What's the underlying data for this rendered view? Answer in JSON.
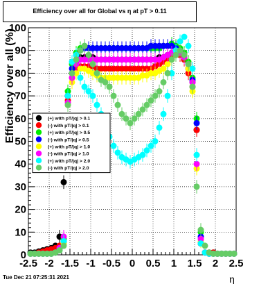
{
  "header": {
    "title": "Efficiency over all for Global vs   η at pT > 0.11"
  },
  "footer": {
    "timestamp": "Tue Dec 21 07:25:31 2021"
  },
  "chart_data": {
    "type": "scatter",
    "title": "Efficiency over all for Global vs   η at pT > 0.11",
    "xlabel": "η",
    "ylabel": "Efficiency over all (%)",
    "xlim": [
      -2.5,
      2.5
    ],
    "ylim": [
      0,
      100
    ],
    "x_ticks": [
      "-2.5",
      "-2",
      "-1.5",
      "-1",
      "-0.5",
      "0",
      "0.5",
      "1",
      "1.5",
      "2",
      "2.5"
    ],
    "y_ticks": [
      "0",
      "10",
      "20",
      "30",
      "40",
      "50",
      "60",
      "70",
      "80",
      "90",
      "100"
    ],
    "grid": true,
    "legend_position": "left-middle",
    "series": [
      {
        "name": "(+) with pT/|q| > 0.1",
        "color": "#000000",
        "x": [
          -2.45,
          -2.35,
          -2.25,
          -2.15,
          -2.05,
          -1.95,
          -1.85,
          -1.75,
          -1.65,
          -1.55,
          -1.45,
          -1.35,
          -1.25,
          -1.15,
          -1.05,
          -0.95,
          -0.85,
          -0.75,
          -0.65,
          -0.55,
          -0.45,
          -0.35,
          -0.25,
          -0.15,
          -0.05,
          0.05,
          0.15,
          0.25,
          0.35,
          0.45,
          0.55,
          0.65,
          0.75,
          0.85,
          0.95,
          1.05,
          1.15,
          1.25,
          1.35,
          1.45,
          1.55,
          1.65,
          1.75,
          1.85,
          1.95,
          2.05,
          2.15,
          2.25,
          2.35,
          2.45
        ],
        "y": [
          1,
          1,
          1.5,
          2,
          2.5,
          3,
          4,
          8,
          32,
          70,
          80,
          85,
          87,
          87,
          87,
          87,
          86,
          86,
          86,
          86,
          86,
          86,
          86,
          86,
          86,
          86,
          86,
          86,
          86,
          86,
          86,
          87,
          87,
          88,
          89,
          89,
          88,
          86,
          82,
          76,
          55,
          5,
          1,
          1,
          1,
          0.5,
          0.5,
          0.5,
          0.5,
          0.5
        ]
      },
      {
        "name": "(-) with pT/|q| > 0.1",
        "color": "#ff0000",
        "x": [
          -2.45,
          -2.35,
          -2.25,
          -2.15,
          -2.05,
          -1.95,
          -1.85,
          -1.75,
          -1.65,
          -1.55,
          -1.45,
          -1.35,
          -1.25,
          -1.15,
          -1.05,
          -0.95,
          -0.85,
          -0.75,
          -0.65,
          -0.55,
          -0.45,
          -0.35,
          -0.25,
          -0.15,
          -0.05,
          0.05,
          0.15,
          0.25,
          0.35,
          0.45,
          0.55,
          0.65,
          0.75,
          0.85,
          0.95,
          1.05,
          1.15,
          1.25,
          1.35,
          1.45,
          1.55,
          1.65,
          1.75,
          1.85,
          1.95,
          2.05,
          2.15,
          2.25,
          2.35,
          2.45
        ],
        "y": [
          0.5,
          0.5,
          1,
          1.5,
          2,
          2.5,
          3,
          4,
          5,
          68,
          78,
          82,
          83,
          83,
          83,
          83,
          82,
          82,
          82,
          82,
          82,
          82,
          82,
          82,
          82,
          82,
          82,
          82,
          82,
          82,
          83,
          84,
          85,
          86,
          87,
          88,
          88,
          86,
          80,
          74,
          55,
          5,
          1,
          1,
          1,
          0.5,
          0.5,
          0.5,
          0.5,
          0.5
        ]
      },
      {
        "name": "(+) with pT/|q| > 0.5",
        "color": "#00ee00",
        "x": [
          -2.45,
          -2.35,
          -2.25,
          -2.15,
          -2.05,
          -1.95,
          -1.85,
          -1.75,
          -1.65,
          -1.55,
          -1.45,
          -1.35,
          -1.25,
          -1.15,
          -1.05,
          -0.95,
          -0.85,
          -0.75,
          -0.65,
          -0.55,
          -0.45,
          -0.35,
          -0.25,
          -0.15,
          -0.05,
          0.05,
          0.15,
          0.25,
          0.35,
          0.45,
          0.55,
          0.65,
          0.75,
          0.85,
          0.95,
          1.05,
          1.15,
          1.25,
          1.35,
          1.45,
          1.55,
          1.65,
          1.75,
          1.85,
          1.95,
          2.05,
          2.15,
          2.25,
          2.35,
          2.45
        ],
        "y": [
          0.5,
          0.5,
          0.5,
          0.5,
          0.5,
          0.5,
          1,
          3,
          7,
          72,
          84,
          89,
          91,
          92,
          91,
          91,
          91,
          91,
          91,
          91,
          91,
          91,
          91,
          91,
          91,
          91,
          91,
          91,
          91,
          91,
          91,
          91,
          92,
          92,
          93,
          92,
          91,
          89,
          85,
          78,
          60,
          10,
          1,
          0.5,
          0.5,
          0.5,
          0.5,
          0.5,
          0.5,
          0.5
        ]
      },
      {
        "name": "(-) with pT/|q| > 0.5",
        "color": "#0000ff",
        "x": [
          -2.45,
          -2.35,
          -2.25,
          -2.15,
          -2.05,
          -1.95,
          -1.85,
          -1.75,
          -1.65,
          -1.55,
          -1.45,
          -1.35,
          -1.25,
          -1.15,
          -1.05,
          -0.95,
          -0.85,
          -0.75,
          -0.65,
          -0.55,
          -0.45,
          -0.35,
          -0.25,
          -0.15,
          -0.05,
          0.05,
          0.15,
          0.25,
          0.35,
          0.45,
          0.55,
          0.65,
          0.75,
          0.85,
          0.95,
          1.05,
          1.15,
          1.25,
          1.35,
          1.45,
          1.55,
          1.65,
          1.75,
          1.85,
          1.95,
          2.05,
          2.15,
          2.25,
          2.35,
          2.45
        ],
        "y": [
          0.5,
          0.5,
          0.5,
          0.5,
          0.5,
          0.5,
          1,
          3,
          6,
          70,
          82,
          88,
          90,
          91,
          91,
          91,
          91,
          91,
          91,
          91,
          91,
          91,
          91,
          91,
          91,
          91,
          91,
          91,
          91,
          92,
          92,
          92,
          92,
          92,
          92,
          91,
          90,
          88,
          84,
          77,
          58,
          8,
          1,
          0.5,
          0.5,
          0.5,
          0.5,
          0.5,
          0.5,
          0.5
        ]
      },
      {
        "name": "(+) with pT/|q| > 1.0",
        "color": "#ffff00",
        "x": [
          -2.45,
          -2.35,
          -2.25,
          -2.15,
          -2.05,
          -1.95,
          -1.85,
          -1.75,
          -1.65,
          -1.55,
          -1.45,
          -1.35,
          -1.25,
          -1.15,
          -1.05,
          -0.95,
          -0.85,
          -0.75,
          -0.65,
          -0.55,
          -0.45,
          -0.35,
          -0.25,
          -0.15,
          -0.05,
          0.05,
          0.15,
          0.25,
          0.35,
          0.45,
          0.55,
          0.65,
          0.75,
          0.85,
          0.95,
          1.05,
          1.15,
          1.25,
          1.35,
          1.45,
          1.55,
          1.65,
          1.75,
          1.85,
          1.95,
          2.05,
          2.15,
          2.25,
          2.35,
          2.45
        ],
        "y": [
          0.5,
          0.5,
          0.5,
          0.5,
          0.5,
          0.5,
          1,
          2,
          5,
          66,
          76,
          80,
          82,
          82,
          81,
          80,
          79,
          78,
          78,
          78,
          78,
          78,
          78,
          78,
          78,
          78,
          78,
          79,
          79,
          80,
          80,
          81,
          82,
          84,
          86,
          88,
          89,
          88,
          82,
          72,
          38,
          6,
          1,
          0.5,
          0.5,
          0.5,
          0.5,
          0.5,
          0.5,
          0.5
        ]
      },
      {
        "name": "(-) with pT/|q| > 1.0",
        "color": "#ff00ff",
        "x": [
          -2.45,
          -2.35,
          -2.25,
          -2.15,
          -2.05,
          -1.95,
          -1.85,
          -1.75,
          -1.65,
          -1.55,
          -1.45,
          -1.35,
          -1.25,
          -1.15,
          -1.05,
          -0.95,
          -0.85,
          -0.75,
          -0.65,
          -0.55,
          -0.45,
          -0.35,
          -0.25,
          -0.15,
          -0.05,
          0.05,
          0.15,
          0.25,
          0.35,
          0.45,
          0.55,
          0.65,
          0.75,
          0.85,
          0.95,
          1.05,
          1.15,
          1.25,
          1.35,
          1.45,
          1.55,
          1.65,
          1.75,
          1.85,
          1.95,
          2.05,
          2.15,
          2.25,
          2.35,
          2.45
        ],
        "y": [
          0.5,
          0.5,
          0.5,
          0.5,
          0.5,
          0.5,
          1,
          3,
          8,
          67,
          78,
          84,
          86,
          86,
          86,
          86,
          86,
          86,
          86,
          86,
          86,
          86,
          86,
          86,
          86,
          86,
          86,
          86,
          86,
          86,
          86,
          86,
          87,
          88,
          89,
          90,
          89,
          87,
          84,
          76,
          40,
          7,
          1,
          0.5,
          0.5,
          0.5,
          0.5,
          0.5,
          0.5,
          0.5
        ]
      },
      {
        "name": "(+) with pT/|q| > 2.0",
        "color": "#00ffff",
        "x": [
          -2.45,
          -2.35,
          -2.25,
          -2.15,
          -2.05,
          -1.95,
          -1.85,
          -1.75,
          -1.65,
          -1.55,
          -1.45,
          -1.35,
          -1.25,
          -1.15,
          -1.05,
          -0.95,
          -0.85,
          -0.75,
          -0.65,
          -0.55,
          -0.45,
          -0.35,
          -0.25,
          -0.15,
          -0.05,
          0.05,
          0.15,
          0.25,
          0.35,
          0.45,
          0.55,
          0.65,
          0.75,
          0.85,
          0.95,
          1.05,
          1.15,
          1.25,
          1.35,
          1.45,
          1.55,
          1.65,
          1.75,
          1.85,
          1.95,
          2.05,
          2.15,
          2.25,
          2.35,
          2.45
        ],
        "y": [
          0.5,
          0.5,
          0.5,
          0.5,
          0.5,
          0.5,
          1,
          2,
          6,
          70,
          85,
          88,
          78,
          74,
          72,
          70,
          66,
          62,
          58,
          52,
          48,
          45,
          43,
          42,
          41,
          42,
          43,
          44,
          46,
          48,
          50,
          56,
          62,
          70,
          80,
          90,
          94,
          96,
          92,
          82,
          44,
          5,
          1,
          0.5,
          0.5,
          0.5,
          0.5,
          0.5,
          0.5,
          0.5
        ]
      },
      {
        "name": "(-) with pT/|q| > 2.0",
        "color": "#66cc66",
        "x": [
          -2.45,
          -2.35,
          -2.25,
          -2.15,
          -2.05,
          -1.95,
          -1.85,
          -1.75,
          -1.65,
          -1.55,
          -1.45,
          -1.35,
          -1.25,
          -1.15,
          -1.05,
          -0.95,
          -0.85,
          -0.75,
          -0.65,
          -0.55,
          -0.45,
          -0.35,
          -0.25,
          -0.15,
          -0.05,
          0.05,
          0.15,
          0.25,
          0.35,
          0.45,
          0.55,
          0.65,
          0.75,
          0.85,
          0.95,
          1.05,
          1.15,
          1.25,
          1.35,
          1.45,
          1.55,
          1.65,
          1.75,
          1.85,
          1.95,
          2.05,
          2.15,
          2.25,
          2.35,
          2.45
        ],
        "y": [
          0.5,
          0.5,
          0.5,
          0.5,
          0.5,
          0.5,
          1,
          2,
          4,
          66,
          80,
          86,
          90,
          92,
          88,
          84,
          80,
          77,
          76,
          74,
          70,
          66,
          62,
          60,
          58,
          60,
          62,
          64,
          66,
          68,
          70,
          72,
          76,
          80,
          86,
          88,
          90,
          88,
          84,
          74,
          30,
          11,
          4,
          1,
          0.5,
          0.5,
          0.5,
          0.5,
          0.5,
          0.5
        ]
      }
    ]
  }
}
